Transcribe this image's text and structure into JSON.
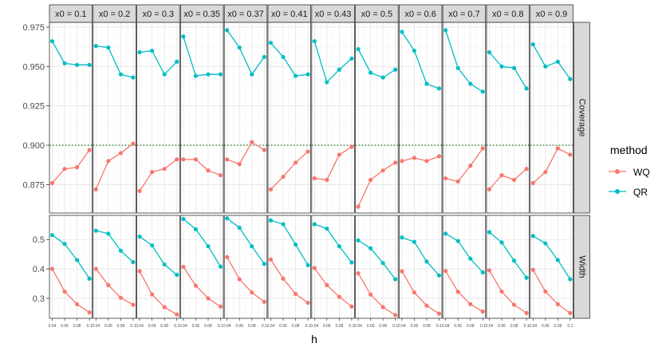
{
  "chart_data": {
    "type": "line",
    "facet_columns": [
      "x0 = 0.1",
      "x0 = 0.2",
      "x0 = 0.3",
      "x0 = 0.35",
      "x0 = 0.37",
      "x0 = 0.41",
      "x0 = 0.43",
      "x0 = 0.5",
      "x0 = 0.6",
      "x0 = 0.7",
      "x0 = 0.8",
      "x0 = 0.9"
    ],
    "facet_rows": [
      "Coverage",
      "Width"
    ],
    "x": [
      0.04,
      0.06,
      0.08,
      0.1
    ],
    "x_tick_labels": [
      "0.04",
      "0.06",
      "0.08",
      "0.1"
    ],
    "xlabel": "h",
    "legend_title": "method",
    "legend_position": "right",
    "grid": true,
    "series": [
      {
        "name": "WQ",
        "color": "#F8766D"
      },
      {
        "name": "QR",
        "color": "#00BFC4"
      }
    ],
    "rows": [
      {
        "label": "Coverage",
        "ylim": [
          0.857,
          0.978
        ],
        "y_ticks": [
          0.875,
          0.9,
          0.925,
          0.95,
          0.975
        ],
        "y_tick_labels": [
          "0.875",
          "0.900",
          "0.925",
          "0.950",
          "0.975"
        ],
        "reference_line": 0.9,
        "values": {
          "WQ": [
            [
              0.876,
              0.885,
              0.886,
              0.897
            ],
            [
              0.872,
              0.89,
              0.895,
              0.901
            ],
            [
              0.871,
              0.883,
              0.885,
              0.891
            ],
            [
              0.891,
              0.891,
              0.884,
              0.881
            ],
            [
              0.891,
              0.888,
              0.902,
              0.897
            ],
            [
              0.872,
              0.88,
              0.889,
              0.896
            ],
            [
              0.879,
              0.878,
              0.894,
              0.899
            ],
            [
              0.861,
              0.878,
              0.884,
              0.889
            ],
            [
              0.89,
              0.892,
              0.89,
              0.893
            ],
            [
              0.879,
              0.877,
              0.887,
              0.898
            ],
            [
              0.872,
              0.881,
              0.878,
              0.885
            ],
            [
              0.876,
              0.883,
              0.898,
              0.894
            ]
          ],
          "QR": [
            [
              0.966,
              0.952,
              0.951,
              0.951
            ],
            [
              0.963,
              0.962,
              0.945,
              0.943
            ],
            [
              0.959,
              0.96,
              0.945,
              0.953
            ],
            [
              0.969,
              0.944,
              0.945,
              0.945
            ],
            [
              0.973,
              0.962,
              0.945,
              0.956
            ],
            [
              0.965,
              0.956,
              0.944,
              0.945
            ],
            [
              0.966,
              0.94,
              0.948,
              0.955
            ],
            [
              0.961,
              0.946,
              0.943,
              0.948
            ],
            [
              0.972,
              0.96,
              0.939,
              0.936
            ],
            [
              0.973,
              0.949,
              0.939,
              0.934
            ],
            [
              0.959,
              0.95,
              0.949,
              0.936
            ],
            [
              0.964,
              0.95,
              0.953,
              0.942
            ]
          ]
        }
      },
      {
        "label": "Width",
        "ylim": [
          0.232,
          0.582
        ],
        "y_ticks": [
          0.3,
          0.4,
          0.5
        ],
        "y_tick_labels": [
          "0.3",
          "0.4",
          "0.5"
        ],
        "values": {
          "WQ": [
            [
              0.4,
              0.323,
              0.28,
              0.252
            ],
            [
              0.4,
              0.345,
              0.302,
              0.278
            ],
            [
              0.392,
              0.313,
              0.27,
              0.245
            ],
            [
              0.407,
              0.343,
              0.3,
              0.272
            ],
            [
              0.44,
              0.365,
              0.32,
              0.288
            ],
            [
              0.432,
              0.367,
              0.315,
              0.285
            ],
            [
              0.403,
              0.345,
              0.305,
              0.272
            ],
            [
              0.385,
              0.313,
              0.27,
              0.243
            ],
            [
              0.392,
              0.32,
              0.275,
              0.248
            ],
            [
              0.393,
              0.322,
              0.28,
              0.255
            ],
            [
              0.395,
              0.323,
              0.278,
              0.25
            ],
            [
              0.397,
              0.323,
              0.28,
              0.25
            ]
          ],
          "QR": [
            [
              0.515,
              0.485,
              0.43,
              0.367
            ],
            [
              0.53,
              0.52,
              0.462,
              0.423
            ],
            [
              0.51,
              0.48,
              0.415,
              0.38
            ],
            [
              0.57,
              0.535,
              0.477,
              0.408
            ],
            [
              0.572,
              0.54,
              0.477,
              0.417
            ],
            [
              0.565,
              0.552,
              0.483,
              0.413
            ],
            [
              0.552,
              0.537,
              0.477,
              0.422
            ],
            [
              0.497,
              0.47,
              0.42,
              0.365
            ],
            [
              0.507,
              0.492,
              0.425,
              0.378
            ],
            [
              0.52,
              0.495,
              0.435,
              0.388
            ],
            [
              0.525,
              0.49,
              0.428,
              0.37
            ],
            [
              0.512,
              0.487,
              0.43,
              0.365
            ]
          ]
        }
      }
    ]
  }
}
